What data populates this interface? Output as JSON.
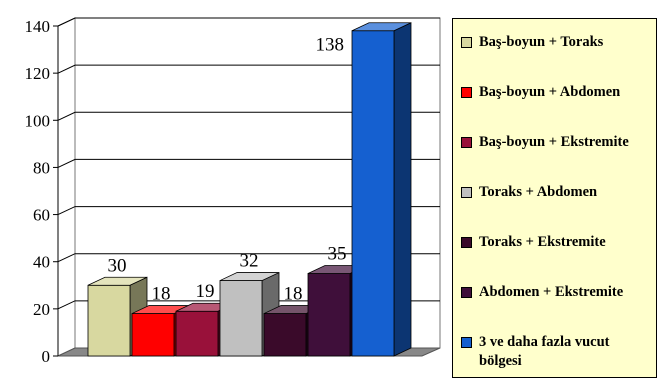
{
  "chart_data": {
    "type": "bar",
    "title": "",
    "xlabel": "",
    "ylabel": "",
    "ylim": [
      0,
      140
    ],
    "yticks": [
      0,
      20,
      40,
      60,
      80,
      100,
      120,
      140
    ],
    "grid": true,
    "legend_position": "right",
    "series": [
      {
        "name": "Baş-boyun + Toraks",
        "value": 30,
        "color": "#d8d8a0"
      },
      {
        "name": "Baş-boyun + Abdomen",
        "value": 18,
        "color": "#ff0000"
      },
      {
        "name": "Baş-boyun + Ekstremite",
        "value": 19,
        "color": "#99113a"
      },
      {
        "name": "Toraks + Abdomen",
        "value": 32,
        "color": "#c0c0c0"
      },
      {
        "name": "Toraks + Ekstremite",
        "value": 18,
        "color": "#3a0a2a"
      },
      {
        "name": "Abdomen + Ekstremite",
        "value": 35,
        "color": "#3f0f3a"
      },
      {
        "name": "3 ve daha fazla vucut bölgesi",
        "value": 138,
        "color": "#1560d0"
      }
    ]
  }
}
